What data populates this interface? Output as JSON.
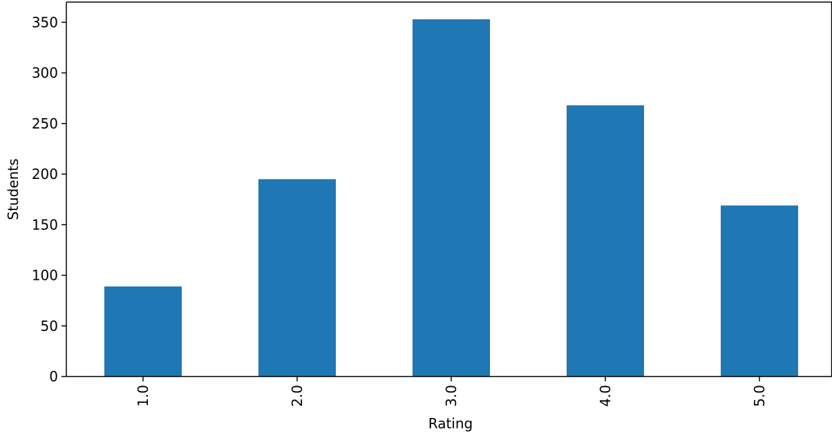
{
  "chart_data": {
    "type": "bar",
    "title": "",
    "xlabel": "Rating",
    "ylabel": "Students",
    "categories": [
      "1.0",
      "2.0",
      "3.0",
      "4.0",
      "5.0"
    ],
    "values": [
      89,
      195,
      353,
      268,
      169
    ],
    "ylim": [
      0,
      370
    ],
    "yticks": [
      0,
      50,
      100,
      150,
      200,
      250,
      300,
      350
    ],
    "ytick_labels": [
      "0",
      "50",
      "100",
      "150",
      "200",
      "250",
      "300",
      "350"
    ],
    "grid": false,
    "legend": "none",
    "bar_color": "#1f77b4",
    "xtick_rotation": "vertical"
  }
}
